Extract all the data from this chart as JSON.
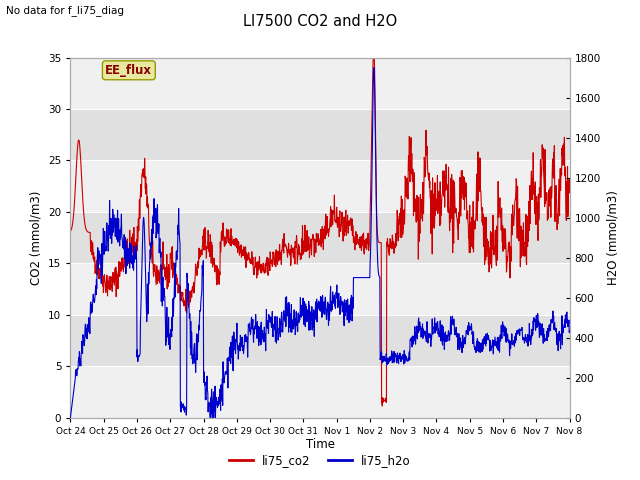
{
  "title": "LI7500 CO2 and H2O",
  "top_left_text": "No data for f_li75_diag",
  "annotation_text": "EE_flux",
  "xlabel": "Time",
  "ylabel_left": "CO2 (mmol/m3)",
  "ylabel_right": "H2O (mmol/m3)",
  "ylim_left": [
    0,
    35
  ],
  "ylim_right": [
    0,
    1800
  ],
  "yticks_left": [
    0,
    5,
    10,
    15,
    20,
    25,
    30,
    35
  ],
  "yticks_right": [
    0,
    200,
    400,
    600,
    800,
    1000,
    1200,
    1400,
    1600,
    1800
  ],
  "xtick_labels": [
    "Oct 24",
    "Oct 25",
    "Oct 26",
    "Oct 27",
    "Oct 28",
    "Oct 29",
    "Oct 30",
    "Oct 31",
    "Nov 1",
    "Nov 2",
    "Nov 3",
    "Nov 4",
    "Nov 5",
    "Nov 6",
    "Nov 7",
    "Nov 8"
  ],
  "color_co2": "#cc0000",
  "color_h2o": "#0000cc",
  "legend_co2": "li75_co2",
  "legend_h2o": "li75_h2o",
  "fig_bg_color": "#ffffff",
  "plot_bg_color": "#f0f0f0",
  "band_color": "#e0e0e0",
  "annotation_bg": "#e8e8a0",
  "annotation_border": "#888800",
  "linewidth": 0.8,
  "n_points": 1440
}
